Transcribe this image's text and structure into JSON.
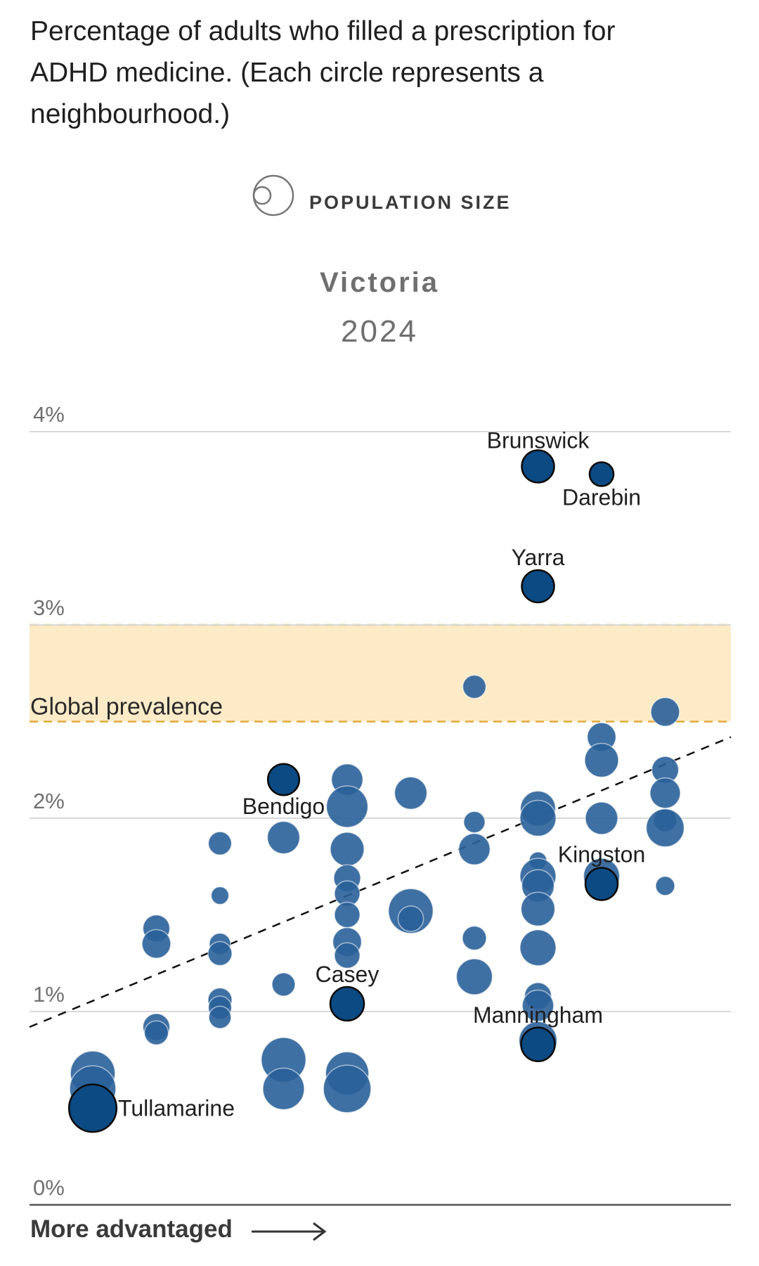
{
  "intro": {
    "lines": [
      "Percentage of adults who filled a prescription for",
      "ADHD medicine. (Each circle represents a",
      "neighbourhood.)"
    ]
  },
  "legend": {
    "label": "POPULATION SIZE",
    "icon": "population-size-circles-icon"
  },
  "colors": {
    "point": "#2a6099",
    "highlight": "#0b4a82",
    "band": "#fdebc8",
    "band_line": "#e0a93a",
    "grid": "#d9d9d9",
    "axis": "#555555"
  },
  "chart_data": {
    "type": "scatter",
    "title": "Victoria",
    "subtitle": "2024",
    "xlabel": "More advantaged",
    "ylabel": "",
    "ylim": [
      0,
      4
    ],
    "y_ticks": [
      0,
      1,
      2,
      3,
      4
    ],
    "y_tick_labels": [
      "0%",
      "1%",
      "2%",
      "3%",
      "4%"
    ],
    "xlim": [
      0.5,
      10.5
    ],
    "band": {
      "label": "Global prevalence",
      "from": 2.5,
      "to": 3.0
    },
    "trend_line": {
      "x": [
        0.5,
        10.5
      ],
      "y": [
        0.92,
        2.42
      ]
    },
    "points": [
      {
        "x": 1,
        "y": 0.68,
        "pop": 0.55
      },
      {
        "x": 1,
        "y": 0.6,
        "pop": 0.6
      },
      {
        "x": 1,
        "y": 0.5,
        "pop": 0.65,
        "label": "Tullamarine",
        "highlight": true
      },
      {
        "x": 2,
        "y": 1.43,
        "pop": 0.12
      },
      {
        "x": 2,
        "y": 1.35,
        "pop": 0.15
      },
      {
        "x": 2,
        "y": 0.92,
        "pop": 0.12
      },
      {
        "x": 2,
        "y": 0.89,
        "pop": 0.08
      },
      {
        "x": 3,
        "y": 1.87,
        "pop": 0.07
      },
      {
        "x": 3,
        "y": 1.6,
        "pop": 0.02
      },
      {
        "x": 3,
        "y": 1.35,
        "pop": 0.05
      },
      {
        "x": 3,
        "y": 1.3,
        "pop": 0.08
      },
      {
        "x": 3,
        "y": 1.06,
        "pop": 0.08
      },
      {
        "x": 3,
        "y": 1.02,
        "pop": 0.07
      },
      {
        "x": 3,
        "y": 0.97,
        "pop": 0.06
      },
      {
        "x": 4,
        "y": 2.2,
        "pop": 0.2,
        "label": "Bendigo",
        "highlight": true
      },
      {
        "x": 4,
        "y": 1.9,
        "pop": 0.22
      },
      {
        "x": 4,
        "y": 1.14,
        "pop": 0.07
      },
      {
        "x": 4,
        "y": 0.75,
        "pop": 0.55
      },
      {
        "x": 4,
        "y": 0.6,
        "pop": 0.45
      },
      {
        "x": 5,
        "y": 2.2,
        "pop": 0.2
      },
      {
        "x": 5,
        "y": 2.06,
        "pop": 0.45
      },
      {
        "x": 5,
        "y": 1.84,
        "pop": 0.25
      },
      {
        "x": 5,
        "y": 1.69,
        "pop": 0.12
      },
      {
        "x": 5,
        "y": 1.61,
        "pop": 0.1
      },
      {
        "x": 5,
        "y": 1.5,
        "pop": 0.1
      },
      {
        "x": 5,
        "y": 1.36,
        "pop": 0.15
      },
      {
        "x": 5,
        "y": 1.29,
        "pop": 0.1
      },
      {
        "x": 5,
        "y": 1.04,
        "pop": 0.25,
        "label": "Casey",
        "highlight": true
      },
      {
        "x": 5,
        "y": 0.68,
        "pop": 0.5
      },
      {
        "x": 5,
        "y": 0.6,
        "pop": 0.65
      },
      {
        "x": 6,
        "y": 2.13,
        "pop": 0.22
      },
      {
        "x": 6,
        "y": 1.52,
        "pop": 0.55
      },
      {
        "x": 6,
        "y": 1.48,
        "pop": 0.1
      },
      {
        "x": 7,
        "y": 2.68,
        "pop": 0.07
      },
      {
        "x": 7,
        "y": 1.98,
        "pop": 0.05
      },
      {
        "x": 7,
        "y": 1.84,
        "pop": 0.2
      },
      {
        "x": 7,
        "y": 1.38,
        "pop": 0.08
      },
      {
        "x": 7,
        "y": 1.18,
        "pop": 0.3
      },
      {
        "x": 8,
        "y": 3.82,
        "pop": 0.22,
        "label": "Brunswick",
        "highlight": true
      },
      {
        "x": 8,
        "y": 3.2,
        "pop": 0.22,
        "label": "Yarra",
        "highlight": true
      },
      {
        "x": 8,
        "y": 2.05,
        "pop": 0.28
      },
      {
        "x": 8,
        "y": 2.0,
        "pop": 0.3
      },
      {
        "x": 8,
        "y": 1.78,
        "pop": 0.02
      },
      {
        "x": 8,
        "y": 1.7,
        "pop": 0.3
      },
      {
        "x": 8,
        "y": 1.65,
        "pop": 0.22
      },
      {
        "x": 8,
        "y": 1.53,
        "pop": 0.25
      },
      {
        "x": 8,
        "y": 1.33,
        "pop": 0.3
      },
      {
        "x": 8,
        "y": 1.08,
        "pop": 0.12
      },
      {
        "x": 8,
        "y": 1.03,
        "pop": 0.2
      },
      {
        "x": 8,
        "y": 0.85,
        "pop": 0.35
      },
      {
        "x": 8,
        "y": 0.83,
        "pop": 0.25,
        "label": "Manningham",
        "highlight": true
      },
      {
        "x": 9,
        "y": 3.78,
        "pop": 0.08,
        "label": "Darebin",
        "highlight": true
      },
      {
        "x": 9,
        "y": 2.42,
        "pop": 0.15
      },
      {
        "x": 9,
        "y": 2.3,
        "pop": 0.25
      },
      {
        "x": 9,
        "y": 2.0,
        "pop": 0.22
      },
      {
        "x": 9,
        "y": 1.7,
        "pop": 0.3
      },
      {
        "x": 9,
        "y": 1.66,
        "pop": 0.22,
        "label": "Kingston",
        "highlight": true
      },
      {
        "x": 10,
        "y": 2.55,
        "pop": 0.15
      },
      {
        "x": 10,
        "y": 2.25,
        "pop": 0.12
      },
      {
        "x": 10,
        "y": 2.13,
        "pop": 0.18
      },
      {
        "x": 10,
        "y": 1.99,
        "pop": 0.07
      },
      {
        "x": 10,
        "y": 1.95,
        "pop": 0.35
      },
      {
        "x": 10,
        "y": 1.65,
        "pop": 0.03
      }
    ]
  }
}
